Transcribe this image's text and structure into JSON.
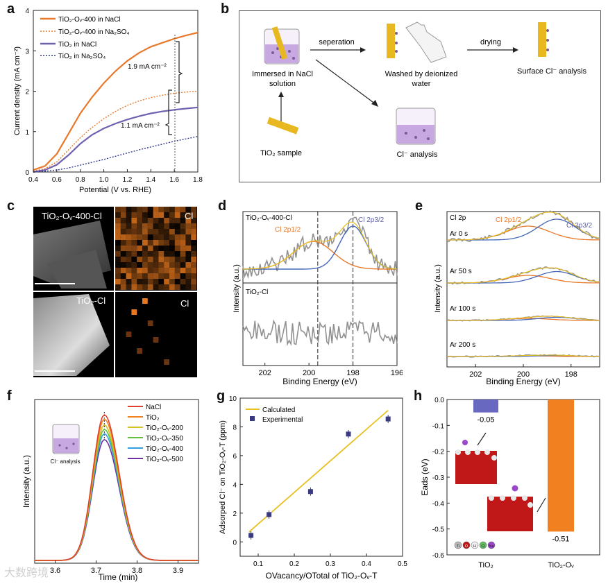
{
  "panels": {
    "a": {
      "letter": "a",
      "chart_data": {
        "type": "line",
        "xlabel": "Potential (V vs. RHE)",
        "ylabel": "Current density (mA cm⁻²)",
        "xlim": [
          0.4,
          1.8
        ],
        "ylim": [
          0,
          4
        ],
        "xticks": [
          "0.4",
          "0.6",
          "0.8",
          "1.0",
          "1.2",
          "1.4",
          "1.6",
          "1.8"
        ],
        "yticks": [
          "0",
          "1",
          "2",
          "3",
          "4"
        ],
        "legend": [
          "TiO₂-Oᵥ-400 in NaCl",
          "TiO₂-Oᵥ-400 in Na₂SO₄",
          "TiO₂ in NaCl",
          "TiO₂ in Na₂SO₄"
        ],
        "annotations": [
          "1.9 mA cm⁻²",
          "1.1 mA cm⁻²"
        ],
        "series": [
          {
            "name": "TiO₂-Oᵥ-400 in NaCl",
            "color": "#e8782a",
            "style": "solid",
            "x": [
              0.4,
              0.5,
              0.6,
              0.7,
              0.8,
              0.9,
              1.0,
              1.1,
              1.2,
              1.3,
              1.4,
              1.5,
              1.6,
              1.7,
              1.8
            ],
            "values": [
              0.05,
              0.15,
              0.45,
              0.95,
              1.45,
              1.85,
              2.2,
              2.5,
              2.75,
              2.95,
              3.1,
              3.2,
              3.3,
              3.38,
              3.45
            ]
          },
          {
            "name": "TiO₂-Oᵥ-400 in Na₂SO₄",
            "color": "#e8782a",
            "style": "dotted",
            "x": [
              0.4,
              0.5,
              0.6,
              0.7,
              0.8,
              0.9,
              1.0,
              1.1,
              1.2,
              1.3,
              1.4,
              1.5,
              1.6,
              1.7,
              1.8
            ],
            "values": [
              0.02,
              0.08,
              0.25,
              0.55,
              0.85,
              1.1,
              1.32,
              1.5,
              1.65,
              1.76,
              1.84,
              1.9,
              1.95,
              1.98,
              2.0
            ]
          },
          {
            "name": "TiO₂ in NaCl",
            "color": "#7060b0",
            "style": "solid",
            "x": [
              0.4,
              0.5,
              0.6,
              0.7,
              0.8,
              0.9,
              1.0,
              1.1,
              1.2,
              1.3,
              1.4,
              1.5,
              1.6,
              1.7,
              1.8
            ],
            "values": [
              0.0,
              0.05,
              0.18,
              0.42,
              0.7,
              0.92,
              1.08,
              1.2,
              1.3,
              1.38,
              1.45,
              1.5,
              1.54,
              1.57,
              1.6
            ]
          },
          {
            "name": "TiO₂ in Na₂SO₄",
            "color": "#303a8a",
            "style": "dotted",
            "x": [
              0.4,
              0.5,
              0.6,
              0.7,
              0.8,
              0.9,
              1.0,
              1.1,
              1.2,
              1.3,
              1.4,
              1.5,
              1.6,
              1.7,
              1.8
            ],
            "values": [
              0.0,
              0.02,
              0.05,
              0.1,
              0.17,
              0.24,
              0.31,
              0.39,
              0.47,
              0.55,
              0.62,
              0.69,
              0.76,
              0.82,
              0.88
            ]
          }
        ]
      }
    },
    "b": {
      "letter": "b",
      "labels": {
        "immersed": "Immersed in NaCl\nsolution",
        "sample": "TiO₂ sample",
        "separation": "seperation",
        "washed": "Washed by deionized\nwater",
        "drying": "drying",
        "surface": "Surface Cl⁻ analysis",
        "cl_analysis": "Cl⁻ analysis"
      }
    },
    "c": {
      "letter": "c",
      "labels": {
        "top": "TiO₂-Oᵥ-400-Cl",
        "top_map": "Cl",
        "bottom": "TiO₂-Cl",
        "bottom_map": "Cl"
      }
    },
    "d": {
      "letter": "d",
      "chart_data": {
        "type": "line",
        "xlabel": "Binding Energy (eV)",
        "ylabel": "Intensity (a.u.)",
        "xticks": [
          "202",
          "200",
          "198",
          "196"
        ],
        "labels": {
          "top": "TiO₂-Oᵥ-400-Cl",
          "bottom": "TiO₂-Cl",
          "p12": "Cl 2p1/2",
          "p32": "Cl 2p3/2"
        },
        "peaks": [
          199.6,
          198.0
        ]
      }
    },
    "e": {
      "letter": "e",
      "chart_data": {
        "type": "line",
        "xlabel": "Binding Energy (eV)",
        "ylabel": "Intensity (a.u.)",
        "xticks": [
          "202",
          "200",
          "198"
        ],
        "title": "Cl 2p",
        "p12": "Cl 2p1/2",
        "p32": "Cl 2p3/2",
        "traces": [
          "Ar 0 s",
          "Ar 50 s",
          "Ar 100 s",
          "Ar 200 s"
        ]
      }
    },
    "f": {
      "letter": "f",
      "chart_data": {
        "type": "line",
        "xlabel": "Time (min)",
        "ylabel": "Intensity (a.u.)",
        "xticks": [
          "3.6",
          "3.7",
          "3.8",
          "3.9"
        ],
        "xlim": [
          3.55,
          3.95
        ],
        "inset": "Cl⁻ analysis",
        "series": [
          {
            "name": "NaCl",
            "color": "#e0402a",
            "height": 1.0
          },
          {
            "name": "TiO₂",
            "color": "#f08020",
            "height": 0.97
          },
          {
            "name": "TiO₂-Oᵥ-200",
            "color": "#d8c020",
            "height": 0.93
          },
          {
            "name": "TiO₂-Oᵥ-350",
            "color": "#60c040",
            "height": 0.9
          },
          {
            "name": "TiO₂-Oᵥ-400",
            "color": "#30a0e0",
            "height": 0.87
          },
          {
            "name": "TiO₂-Oᵥ-500",
            "color": "#7030a0",
            "height": 0.83
          }
        ]
      }
    },
    "g": {
      "letter": "g",
      "chart_data": {
        "type": "scatter",
        "xlabel": "OVacancy/OTotal of TiO₂-Oᵥ-T",
        "ylabel": "Adsorped Cl⁻ on TiO₂-Oᵥ-T (ppm)",
        "xlim": [
          0.05,
          0.5
        ],
        "ylim": [
          -1,
          10
        ],
        "xticks": [
          "0.1",
          "0.2",
          "0.3",
          "0.4",
          "0.5"
        ],
        "yticks": [
          "0",
          "2",
          "4",
          "6",
          "8",
          "10"
        ],
        "legend": [
          "Calculated",
          "Experimental"
        ],
        "x": [
          0.08,
          0.13,
          0.245,
          0.35,
          0.46
        ],
        "values": [
          0.45,
          1.9,
          3.5,
          7.5,
          8.55
        ],
        "fit": {
          "x": [
            0.075,
            0.46
          ],
          "y": [
            0.7,
            9.15
          ]
        }
      }
    },
    "h": {
      "letter": "h",
      "chart_data": {
        "type": "bar",
        "categories": [
          "TiO₂",
          "TiO₂-Oᵥ"
        ],
        "values": [
          -0.05,
          -0.51
        ],
        "ylabel": "Eads (eV)",
        "ylim": [
          -0.6,
          0.0
        ],
        "yticks": [
          "0.0",
          "-0.1",
          "-0.2",
          "-0.3",
          "-0.4",
          "-0.5",
          "-0.6"
        ],
        "labels": [
          "-0.05",
          "-0.51"
        ],
        "colors": [
          "#6868c0",
          "#f08020"
        ],
        "legend_atoms": [
          "Ti",
          "O",
          "H",
          "Cl",
          "Na"
        ]
      }
    }
  },
  "watermark": "大数跨境"
}
